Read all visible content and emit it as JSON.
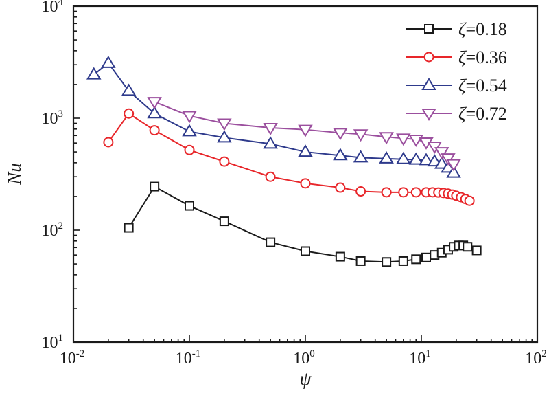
{
  "chart_data": {
    "type": "line",
    "title": "",
    "xlabel": "ψ",
    "ylabel": "Nu",
    "xscale": "log",
    "yscale": "log",
    "xlim": [
      0.01,
      100
    ],
    "ylim": [
      10,
      10000
    ],
    "grid": false,
    "legend_position": "top-right",
    "x_ticks": [
      {
        "base": "10",
        "exp": "-2",
        "value": 0.01
      },
      {
        "base": "10",
        "exp": "-1",
        "value": 0.1
      },
      {
        "base": "10",
        "exp": "0",
        "value": 1
      },
      {
        "base": "10",
        "exp": "1",
        "value": 10
      },
      {
        "base": "10",
        "exp": "2",
        "value": 100
      }
    ],
    "y_ticks": [
      {
        "base": "10",
        "exp": "1",
        "value": 10
      },
      {
        "base": "10",
        "exp": "2",
        "value": 100
      },
      {
        "base": "10",
        "exp": "3",
        "value": 1000
      },
      {
        "base": "10",
        "exp": "4",
        "value": 10000
      }
    ],
    "series": [
      {
        "name": "ζ=0.18",
        "symbol": "ζ",
        "label_value": "=0.18",
        "color": "#1a1a1a",
        "marker": "square",
        "x": [
          0.03,
          0.05,
          0.1,
          0.2,
          0.5,
          1,
          2,
          3,
          5,
          7,
          9,
          11,
          13,
          15,
          17,
          19,
          21,
          23,
          25,
          30
        ],
        "y": [
          105,
          245,
          165,
          120,
          78,
          65,
          58,
          53,
          52,
          53,
          55,
          57,
          60,
          63,
          67,
          71,
          73,
          73,
          71,
          66
        ]
      },
      {
        "name": "ζ=0.36",
        "symbol": "ζ",
        "label_value": "=0.36",
        "color": "#e8262a",
        "marker": "circle",
        "x": [
          0.02,
          0.03,
          0.05,
          0.1,
          0.2,
          0.5,
          1,
          2,
          3,
          5,
          7,
          9,
          11,
          12.5,
          14,
          15.5,
          17,
          18.5,
          20,
          22,
          24,
          26
        ],
        "y": [
          610,
          1100,
          780,
          520,
          410,
          300,
          262,
          240,
          222,
          218,
          218,
          218,
          218,
          218,
          217,
          215,
          212,
          208,
          203,
          197,
          190,
          183
        ]
      },
      {
        "name": "ζ=0.54",
        "symbol": "ζ",
        "label_value": "=0.54",
        "color": "#2e3a8c",
        "marker": "triangle-up",
        "x": [
          0.015,
          0.02,
          0.03,
          0.05,
          0.1,
          0.2,
          0.5,
          1,
          2,
          3,
          5,
          7,
          9,
          11,
          13,
          15,
          17,
          19
        ],
        "y": [
          2450,
          3100,
          1750,
          1100,
          760,
          670,
          590,
          500,
          465,
          445,
          435,
          430,
          425,
          420,
          410,
          390,
          360,
          325
        ]
      },
      {
        "name": "ζ=0.72",
        "symbol": "ζ",
        "label_value": "=0.72",
        "color": "#9b4f9e",
        "marker": "triangle-down",
        "x": [
          0.05,
          0.1,
          0.2,
          0.5,
          1,
          2,
          3,
          5,
          7,
          9,
          11,
          13,
          15,
          17,
          19
        ],
        "y": [
          1400,
          1050,
          900,
          820,
          790,
          740,
          720,
          680,
          660,
          645,
          610,
          560,
          500,
          440,
          390
        ]
      }
    ]
  }
}
